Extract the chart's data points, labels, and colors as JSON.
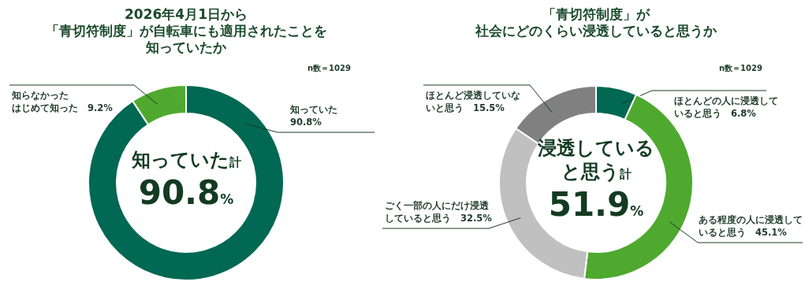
{
  "chart_data": [
    {
      "type": "donut",
      "title": "2026年4月1日から「青切符制度」が自転車にも適用されたことを知っていたか",
      "categories": [
        "知っていた",
        "知らなかったはじめて知った"
      ],
      "values": [
        90.8,
        9.2
      ],
      "value_labels": [
        "90.8%",
        "9.2%"
      ],
      "colors": [
        "#006853",
        "#4fa92f"
      ],
      "annotations": [
        "n数＝1029",
        "知っていた計",
        "90.8%"
      ]
    },
    {
      "type": "donut",
      "title": "「青切符制度」が社会にどのくらい浸透していると思うか",
      "categories": [
        "ほとんどの人に浸透していると思う",
        "ある程度の人に浸透していると思う",
        "ごく一部の人にだけ浸透していると思う",
        "ほとんど浸透していないと思う"
      ],
      "values": [
        6.8,
        45.1,
        32.5,
        15.5
      ],
      "value_labels": [
        "6.8%",
        "45.1%",
        "32.5%",
        "15.5%"
      ],
      "colors": [
        "#006853",
        "#4fa92f",
        "#c0c0c0",
        "#808080"
      ],
      "annotations": [
        "n数＝1029",
        "浸透していると思う計",
        "51.9%"
      ]
    }
  ]
}
